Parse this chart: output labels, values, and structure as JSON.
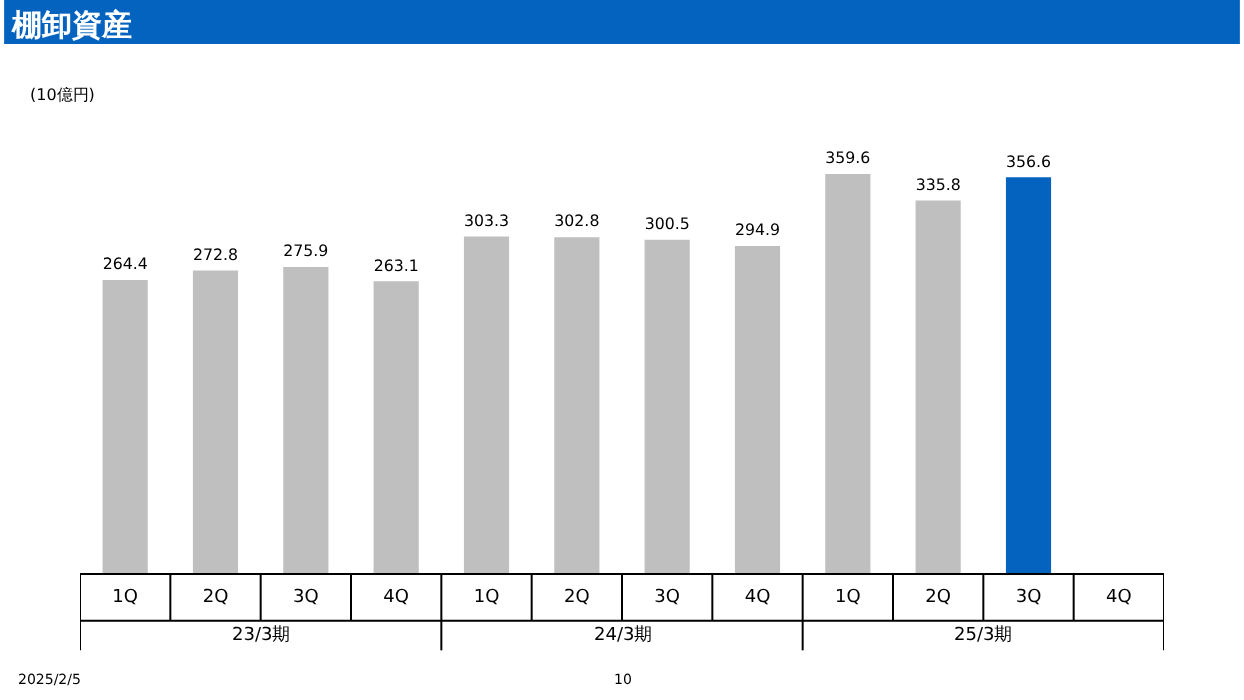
{
  "chart_data": {
    "type": "bar",
    "title": "棚卸資産",
    "ylabel": "(10億円)",
    "categories": [
      "1Q",
      "2Q",
      "3Q",
      "4Q",
      "1Q",
      "2Q",
      "3Q",
      "4Q",
      "1Q",
      "2Q",
      "3Q",
      "4Q"
    ],
    "values": [
      264.4,
      272.8,
      275.9,
      263.1,
      303.3,
      302.8,
      300.5,
      294.9,
      359.6,
      335.8,
      356.6,
      null
    ],
    "colors": [
      "#bfbfbf",
      "#bfbfbf",
      "#bfbfbf",
      "#bfbfbf",
      "#bfbfbf",
      "#bfbfbf",
      "#bfbfbf",
      "#bfbfbf",
      "#bfbfbf",
      "#bfbfbf",
      "#0563c0",
      "#bfbfbf"
    ],
    "data_labels": true,
    "annotations": [
      "23/3期",
      "24/3期",
      "25/3期",
      "2025/2/5",
      "10"
    ]
  }
}
